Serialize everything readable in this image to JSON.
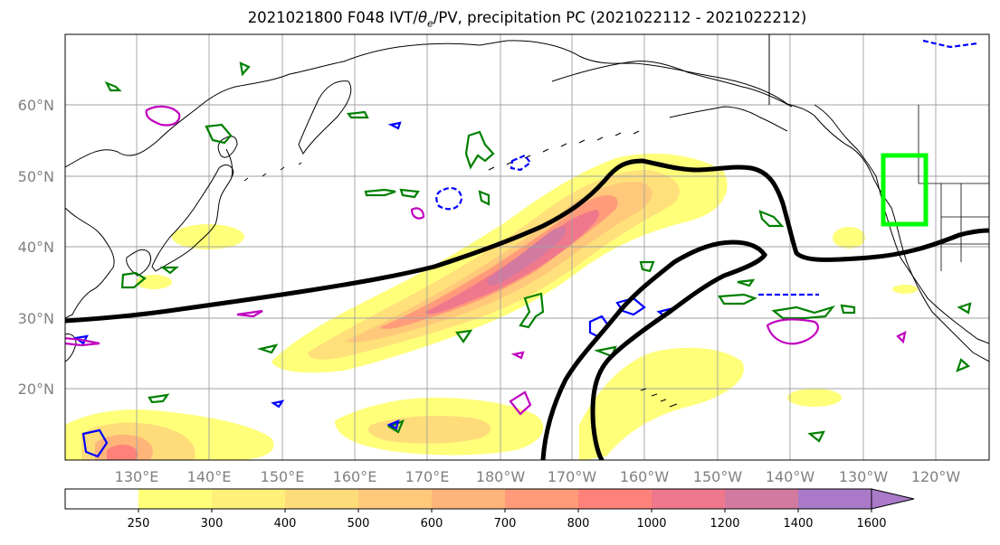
{
  "title": {
    "prefix": "2021021800 F048 IVT/",
    "theta": "θ",
    "theta_sub": "e",
    "suffix": "/PV, precipitation PC (2021022112 - 2021022212)"
  },
  "map": {
    "lat_labels": [
      "20°N",
      "30°N",
      "40°N",
      "50°N",
      "60°N"
    ],
    "lon_labels": [
      "130°E",
      "140°E",
      "150°E",
      "160°E",
      "170°E",
      "180°W",
      "170°W",
      "160°W",
      "150°W",
      "140°W",
      "130°W",
      "120°W"
    ],
    "box_color": "#00ff00",
    "contour_colors": {
      "theta_e": "#000000",
      "pv_green": "#008000",
      "pv_blue": "#0000ff",
      "pv_magenta": "#c000c0"
    }
  },
  "colorbar": {
    "levels": [
      "250",
      "300",
      "400",
      "500",
      "600",
      "700",
      "800",
      "1000",
      "1200",
      "1400",
      "1600"
    ],
    "colors": [
      "#ffffff",
      "#ffff7a",
      "#fff07a",
      "#ffdc7a",
      "#ffc87a",
      "#ffb47a",
      "#ff9b7a",
      "#ff827a",
      "#f0788c",
      "#d27aa0",
      "#aa7ac8"
    ]
  }
}
